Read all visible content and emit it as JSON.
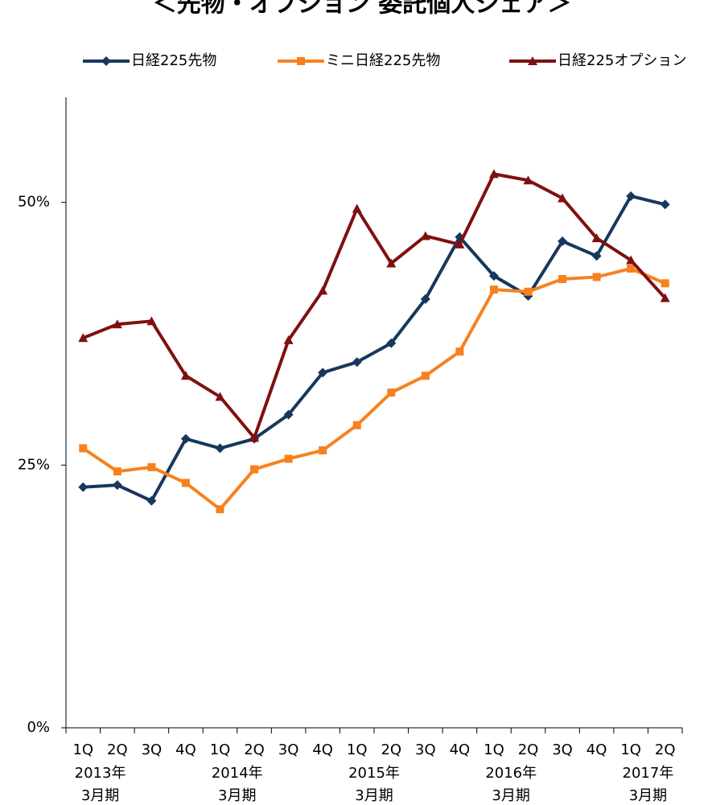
{
  "chart_data": {
    "type": "line",
    "title": "＜先物・オプション 委託個人シェア＞",
    "categories": [
      "1Q",
      "2Q",
      "3Q",
      "4Q",
      "1Q",
      "2Q",
      "3Q",
      "4Q",
      "1Q",
      "2Q",
      "3Q",
      "4Q",
      "1Q",
      "2Q",
      "3Q",
      "4Q",
      "1Q",
      "2Q"
    ],
    "periods": [
      [
        "2013年",
        "3月期"
      ],
      [
        "2014年",
        "3月期"
      ],
      [
        "2015年",
        "3月期"
      ],
      [
        "2016年",
        "3月期"
      ],
      [
        "2017年",
        "3月期"
      ]
    ],
    "series": [
      {
        "name": "日経225先物",
        "color": "#17375e",
        "marker": "diamond",
        "values": [
          22.9,
          23.1,
          21.6,
          27.5,
          26.6,
          27.5,
          29.8,
          33.8,
          34.8,
          36.6,
          40.8,
          46.7,
          43.0,
          41.1,
          46.3,
          44.9,
          50.6,
          49.8
        ]
      },
      {
        "name": "ミニ日経225先物",
        "color": "#f7811e",
        "marker": "square",
        "values": [
          26.6,
          24.4,
          24.8,
          23.3,
          20.8,
          24.6,
          25.6,
          26.4,
          28.8,
          31.9,
          33.5,
          35.8,
          41.7,
          41.5,
          42.7,
          42.9,
          43.7,
          42.3
        ]
      },
      {
        "name": "日経225オプション",
        "color": "#7f1010",
        "marker": "triangle",
        "values": [
          37.1,
          38.4,
          38.7,
          33.5,
          31.5,
          27.6,
          36.9,
          41.6,
          49.4,
          44.2,
          46.8,
          46.0,
          52.7,
          52.1,
          50.4,
          46.6,
          44.5,
          40.9
        ]
      }
    ],
    "ylim": [
      0,
      60
    ],
    "yticks": [
      {
        "value": 0,
        "label": "0%"
      },
      {
        "value": 25,
        "label": "25%"
      },
      {
        "value": 50,
        "label": "50%"
      }
    ],
    "grid": false
  }
}
